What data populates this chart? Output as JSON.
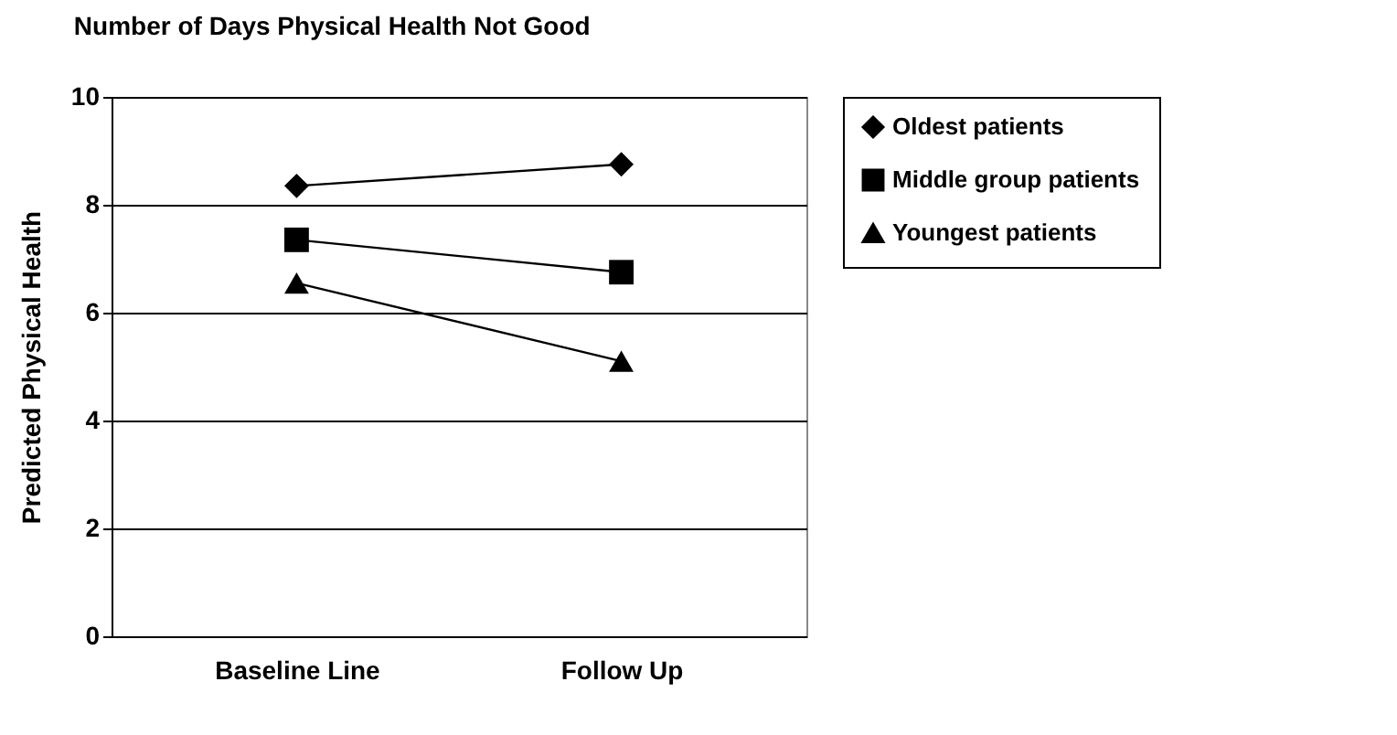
{
  "chart_data": {
    "type": "line",
    "title": "Number of Days Physical Health Not Good",
    "ylabel": "Predicted Physical Health",
    "categories": [
      "Baseline Line",
      "Follow Up"
    ],
    "series": [
      {
        "name": "Oldest patients",
        "color": "#000000",
        "marker": "diamond",
        "values": [
          8.35,
          8.75
        ]
      },
      {
        "name": "Middle group patients",
        "color": "#000000",
        "marker": "square",
        "values": [
          7.35,
          6.75
        ]
      },
      {
        "name": "Youngest patients",
        "color": "#000000",
        "marker": "triangle",
        "values": [
          6.55,
          5.1
        ]
      }
    ],
    "ylim": [
      0,
      10
    ],
    "yticks": [
      0,
      2,
      4,
      6,
      8,
      10
    ],
    "grid": "y",
    "legend": "right",
    "line_style": "solid"
  }
}
